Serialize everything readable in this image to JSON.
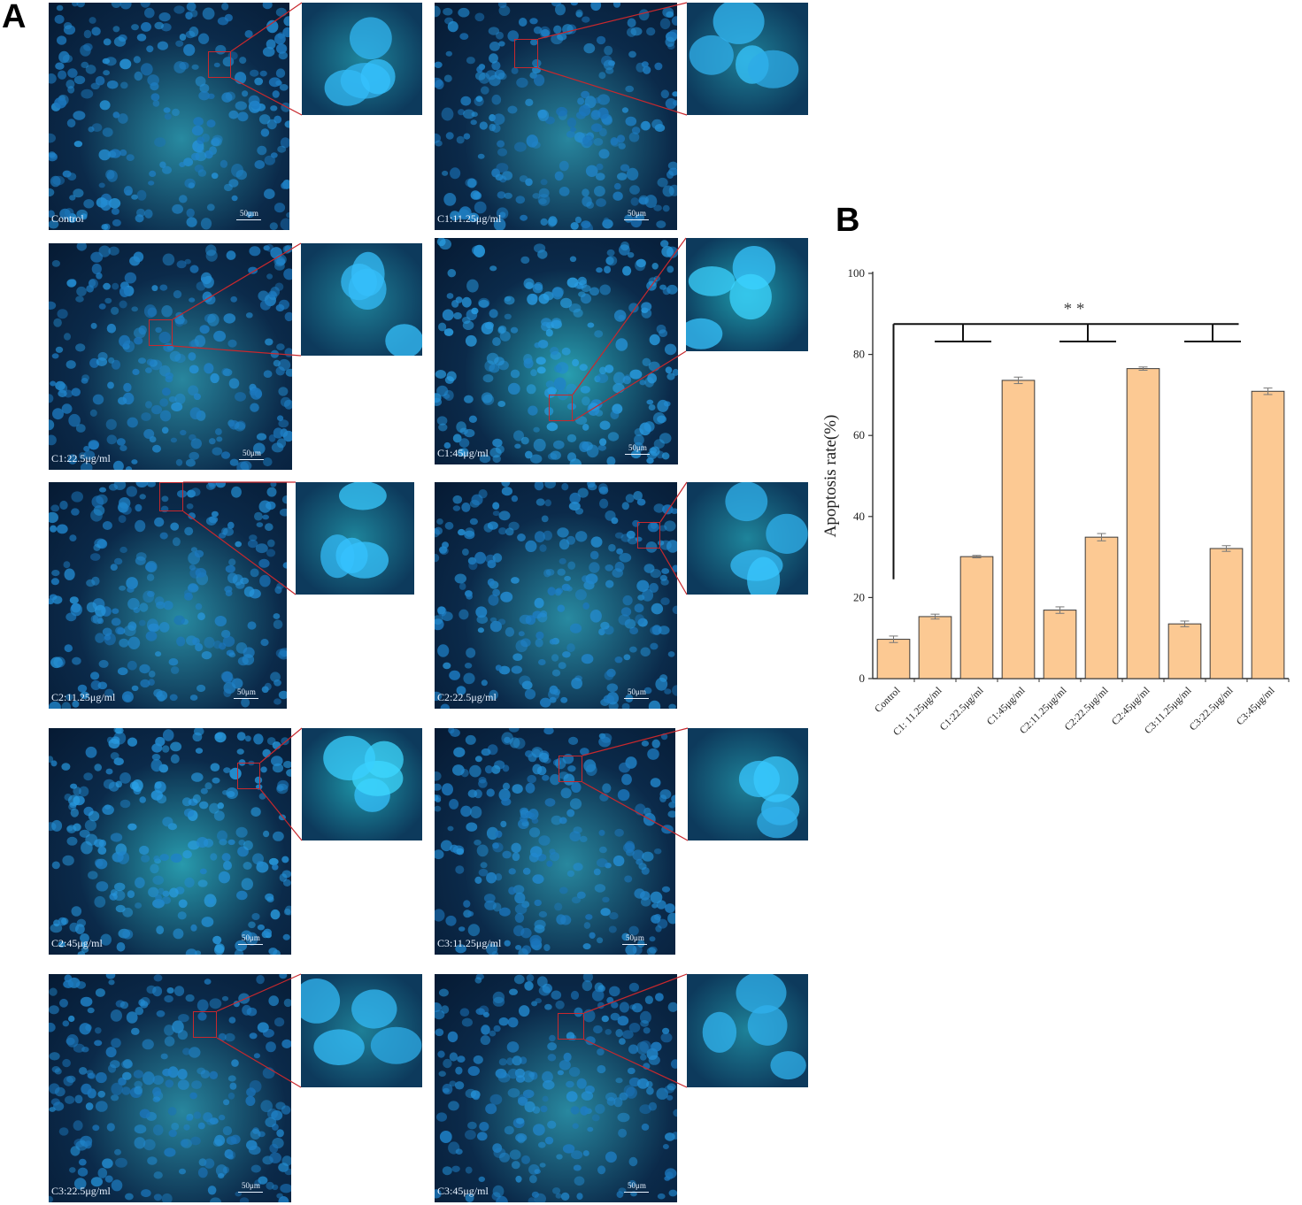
{
  "figure": {
    "panel_a_letter": "A",
    "panel_b_letter": "B",
    "scale_text": "50μm"
  },
  "micrographs": [
    {
      "label": "Control",
      "bg_bright": 0.35
    },
    {
      "label": "C1:11.25μg/ml",
      "bg_bright": 0.3
    },
    {
      "label": "C1:22.5μg/ml",
      "bg_bright": 0.3
    },
    {
      "label": "C1:45μg/ml",
      "bg_bright": 0.6
    },
    {
      "label": "C2:11.25μg/ml",
      "bg_bright": 0.35
    },
    {
      "label": "C2:22.5μg/ml",
      "bg_bright": 0.35
    },
    {
      "label": "C2:45μg/ml",
      "bg_bright": 0.55
    },
    {
      "label": "C3:11.25μg/ml",
      "bg_bright": 0.32
    },
    {
      "label": "C3:22.5μg/ml",
      "bg_bright": 0.3
    },
    {
      "label": "C3:45μg/ml",
      "bg_bright": 0.33
    }
  ],
  "chart_data": {
    "type": "bar",
    "title": "",
    "xlabel": "",
    "ylabel": "Apoptosis rate(%)",
    "ylim": [
      0,
      100
    ],
    "yticks": [
      0,
      20,
      40,
      60,
      80,
      100
    ],
    "categories": [
      "Control",
      "C1: 11.25μg/ml",
      "C1:22.5μg/ml",
      "C1:45μg/ml",
      "C2:11.25μg/ml",
      "C2:22.5μg/ml",
      "C2:45μg/ml",
      "C3:11.25μg/ml",
      "C3:22.5μg/ml",
      "C3:45μg/ml"
    ],
    "values": [
      9.7,
      15.3,
      30.1,
      73.6,
      16.9,
      34.9,
      76.5,
      13.5,
      32.1,
      70.9
    ],
    "errors": [
      0.8,
      0.6,
      0.3,
      0.8,
      0.8,
      0.9,
      0.4,
      0.7,
      0.7,
      0.8
    ],
    "bar_color": "#fcc993",
    "bar_edge": "#3a3a3a",
    "significance": "* *",
    "grid": false,
    "legend": "none"
  }
}
